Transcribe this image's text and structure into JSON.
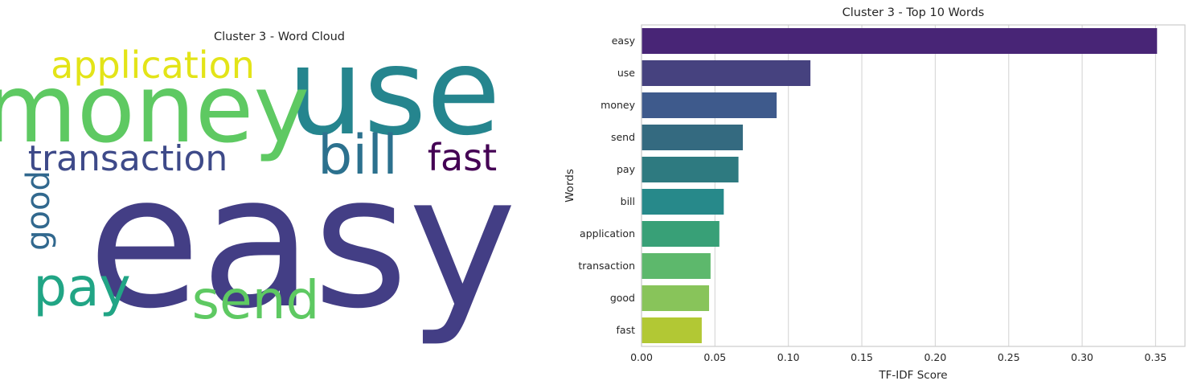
{
  "chart_data": [
    {
      "type": "wordcloud",
      "title": "Cluster 3 - Word Cloud",
      "words": [
        {
          "text": "easy",
          "color": "#433e85"
        },
        {
          "text": "use",
          "color": "#25858e"
        },
        {
          "text": "money",
          "color": "#5ec962"
        },
        {
          "text": "application",
          "color": "#e3e418"
        },
        {
          "text": "transaction",
          "color": "#3e4a89"
        },
        {
          "text": "bill",
          "color": "#2c718e"
        },
        {
          "text": "fast",
          "color": "#440154"
        },
        {
          "text": "good",
          "color": "#31688e"
        },
        {
          "text": "pay",
          "color": "#21a585"
        },
        {
          "text": "send",
          "color": "#5ec962"
        }
      ]
    },
    {
      "type": "bar",
      "orientation": "horizontal",
      "title": "Cluster 3 - Top 10 Words",
      "xlabel": "TF-IDF Score",
      "ylabel": "Words",
      "categories": [
        "easy",
        "use",
        "money",
        "send",
        "pay",
        "bill",
        "application",
        "transaction",
        "good",
        "fast"
      ],
      "values": [
        0.351,
        0.115,
        0.092,
        0.069,
        0.066,
        0.056,
        0.053,
        0.047,
        0.046,
        0.041
      ],
      "colors": [
        "#482576",
        "#46427f",
        "#3e5a8c",
        "#346a80",
        "#2e7a80",
        "#27898a",
        "#38a077",
        "#5db86c",
        "#88c45a",
        "#b2c834"
      ],
      "xlim": [
        0,
        0.37
      ],
      "xticks": [
        "0.00",
        "0.05",
        "0.10",
        "0.15",
        "0.20",
        "0.25",
        "0.30",
        "0.35"
      ],
      "grid": true
    }
  ]
}
